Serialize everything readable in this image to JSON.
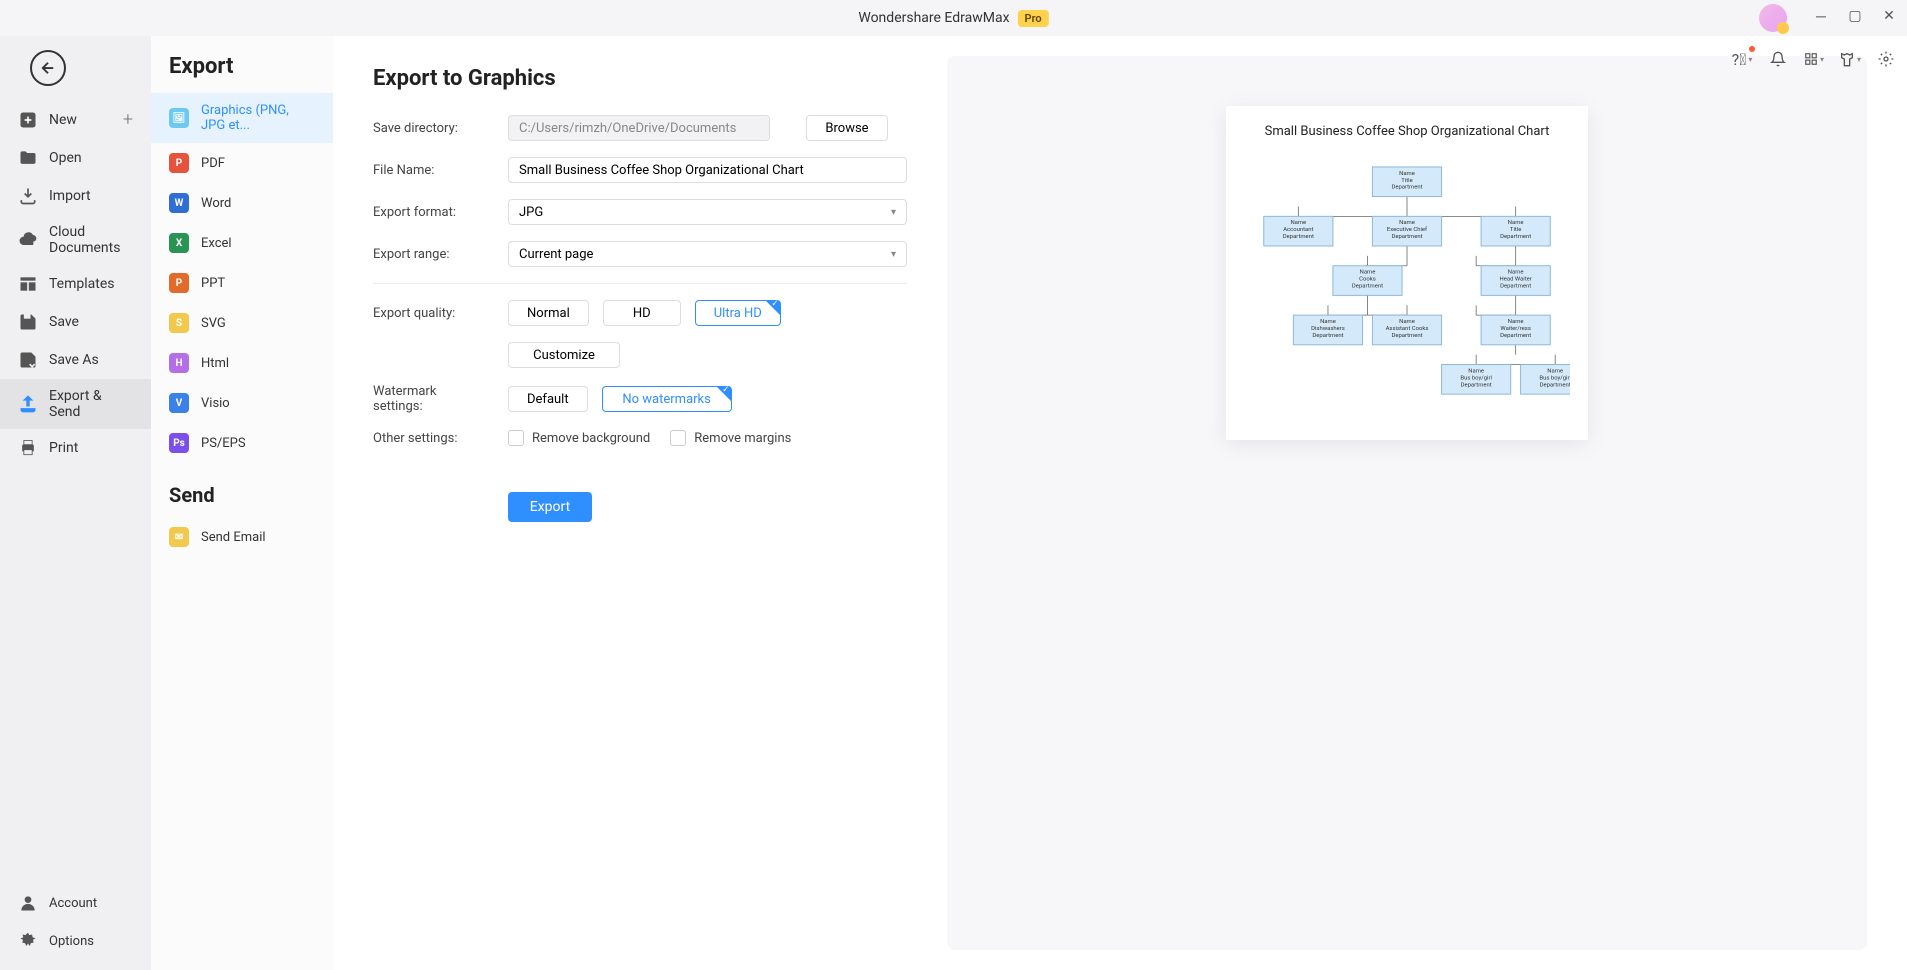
{
  "app": {
    "title": "Wondershare EdrawMax",
    "badge": "Pro"
  },
  "rail": {
    "new": "New",
    "open": "Open",
    "import": "Import",
    "cloud": "Cloud Documents",
    "templates": "Templates",
    "save": "Save",
    "saveas": "Save As",
    "exportsend": "Export & Send",
    "print": "Print",
    "account": "Account",
    "options": "Options"
  },
  "formats": {
    "heading": "Export",
    "graphics": "Graphics (PNG, JPG et...",
    "pdf": "PDF",
    "word": "Word",
    "excel": "Excel",
    "ppt": "PPT",
    "svg": "SVG",
    "html": "Html",
    "visio": "Visio",
    "pseps": "PS/EPS",
    "send_heading": "Send",
    "email": "Send Email"
  },
  "form": {
    "heading": "Export to Graphics",
    "savedir_label": "Save directory:",
    "savedir_value": "C:/Users/rimzh/OneDrive/Documents",
    "browse": "Browse",
    "filename_label": "File Name:",
    "filename_value": "Small Business Coffee Shop Organizational Chart",
    "format_label": "Export format:",
    "format_value": "JPG",
    "range_label": "Export range:",
    "range_value": "Current page",
    "quality_label": "Export quality:",
    "quality": {
      "normal": "Normal",
      "hd": "HD",
      "ultra": "Ultra HD",
      "custom": "Customize"
    },
    "watermark_label": "Watermark settings:",
    "watermark": {
      "default": "Default",
      "none": "No watermarks"
    },
    "other_label": "Other settings:",
    "other": {
      "removebg": "Remove background",
      "removemargin": "Remove margins"
    },
    "export_btn": "Export"
  },
  "preview": {
    "title": "Small Business Coffee Shop Organizational Chart",
    "node_labels": {
      "l1": "Name",
      "l2": "Title",
      "l3": "Department"
    },
    "nodes": {
      "ceo": {
        "l2": "Title"
      },
      "acct": {
        "l2": "Accountant"
      },
      "chief": {
        "l2": "Executive Chief"
      },
      "title2": {
        "l2": "Title"
      },
      "cooks": {
        "l2": "Cooks"
      },
      "headwaiter": {
        "l2": "Head Waiter"
      },
      "dish": {
        "l2": "Dishwashers"
      },
      "asst": {
        "l2": "Assistant Cooks"
      },
      "waiter": {
        "l2": "Waiter/ress"
      },
      "bus1": {
        "l2": "Bus boy/girl"
      },
      "bus2": {
        "l2": "Bus boy/girl"
      }
    },
    "colors": {
      "node_fill": "#d4e9f9",
      "node_stroke": "#8bb8db",
      "line": "#666666"
    }
  }
}
